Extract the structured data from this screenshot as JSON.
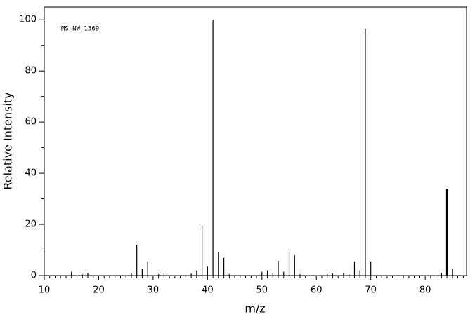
{
  "chart_data": {
    "type": "stem",
    "annotation": "MS-NW-1369",
    "x_label": "m/z",
    "y_label": "Relative Intensity",
    "x": [
      15,
      17,
      18,
      26,
      27,
      28,
      29,
      31,
      32,
      37,
      38,
      39,
      40,
      41,
      42,
      43,
      44,
      50,
      51,
      52,
      53,
      54,
      55,
      56,
      57,
      62,
      63,
      65,
      66,
      67,
      68,
      69,
      70,
      83,
      84,
      85
    ],
    "values": [
      1.5,
      0.5,
      1,
      1,
      12,
      2.5,
      5.5,
      0.5,
      1,
      0.8,
      2,
      19.5,
      3.5,
      100,
      9,
      7,
      0.5,
      1.5,
      2,
      1,
      5.8,
      1.5,
      10.5,
      8,
      0.5,
      0.5,
      0.8,
      1,
      0.5,
      5.5,
      2,
      96.5,
      5.5,
      1,
      34,
      2.5
    ],
    "color": "#000000",
    "xlim": [
      10,
      87.6
    ],
    "xticks": [
      10,
      20,
      30,
      40,
      50,
      60,
      70,
      80
    ],
    "ylim": [
      0,
      105
    ],
    "yticks": [
      0,
      20,
      40,
      60,
      80,
      100
    ]
  }
}
